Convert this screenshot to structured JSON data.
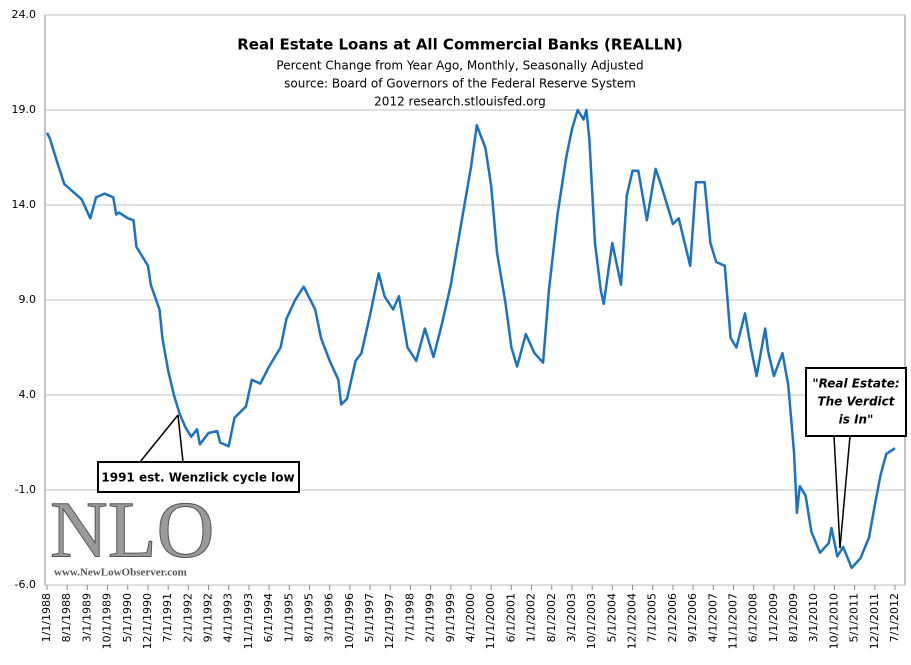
{
  "chart_data": {
    "type": "line",
    "title": "Real Estate Loans at All Commercial Banks (REALLN)",
    "subtitle": [
      "Percent Change from Year Ago, Monthly, Seasonally Adjusted",
      "source: Board of Governors of the Federal Reserve System",
      "2012 research.stlouisfed.org"
    ],
    "annotations": [
      "1991 est. Wenzlick cycle low",
      [
        "\"Real Estate:",
        "The Verdict",
        "is In\""
      ]
    ],
    "logo": [
      "NLO",
      "www.NewLowObserver.com"
    ],
    "grid": true,
    "xlim": [
      "1/1/1988",
      "7/1/2012"
    ],
    "xticks": [
      "1/1/1988",
      "8/1/1988",
      "3/1/1989",
      "10/1/1989",
      "5/1/1990",
      "12/1/1990",
      "7/1/1991",
      "2/1/1992",
      "9/1/1992",
      "4/1/1993",
      "11/1/1993",
      "6/1/1994",
      "1/1/1995",
      "8/1/1995",
      "3/1/1996",
      "10/1/1996",
      "5/1/1997",
      "12/1/1997",
      "7/1/1998",
      "2/1/1999",
      "9/1/1999",
      "4/1/2000",
      "11/1/2000",
      "6/1/2001",
      "1/1/2002",
      "8/1/2002",
      "3/1/2003",
      "10/1/2003",
      "5/1/2004",
      "12/1/2004",
      "7/1/2005",
      "2/1/2006",
      "9/1/2006",
      "4/1/2007",
      "11/1/2007",
      "6/1/2008",
      "1/1/2009",
      "8/1/2009",
      "3/1/2010",
      "10/1/2010",
      "5/1/2011",
      "12/1/2011",
      "7/1/2012"
    ],
    "ylim": [
      -6,
      24
    ],
    "yticks": [
      {
        "value": -6,
        "label": "-6.0"
      },
      {
        "value": -1,
        "label": "-1.0"
      },
      {
        "value": 4,
        "label": "4.0"
      },
      {
        "value": 9,
        "label": "9.0"
      },
      {
        "value": 14,
        "label": "14.0"
      },
      {
        "value": 19,
        "label": "19.0"
      },
      {
        "value": 24,
        "label": "24.0"
      }
    ],
    "x": [
      "1/1/1988",
      "2/1/1988",
      "4/1/1988",
      "7/1/1988",
      "10/1/1988",
      "1/1/1989",
      "4/1/1989",
      "6/1/1989",
      "9/1/1989",
      "12/1/1989",
      "1/1/1990",
      "2/1/1990",
      "5/1/1990",
      "7/1/1990",
      "8/1/1990",
      "12/1/1990",
      "1/1/1991",
      "4/1/1991",
      "5/1/1991",
      "7/1/1991",
      "9/1/1991",
      "11/1/1991",
      "1/1/1992",
      "3/1/1992",
      "5/1/1992",
      "6/1/1992",
      "9/1/1992",
      "12/1/1992",
      "1/1/1993",
      "4/1/1993",
      "6/1/1993",
      "10/1/1993",
      "12/1/1993",
      "3/1/1994",
      "6/1/1994",
      "10/1/1994",
      "12/1/1994",
      "3/1/1995",
      "6/1/1995",
      "10/1/1995",
      "12/1/1995",
      "3/1/1996",
      "6/1/1996",
      "7/1/1996",
      "9/1/1996",
      "12/1/1996",
      "2/1/1997",
      "5/1/1997",
      "8/1/1997",
      "10/1/1997",
      "1/1/1998",
      "3/1/1998",
      "6/1/1998",
      "9/1/1998",
      "12/1/1998",
      "3/1/1999",
      "6/1/1999",
      "9/1/1999",
      "12/1/1999",
      "4/1/2000",
      "6/1/2000",
      "9/1/2000",
      "11/1/2000",
      "1/1/2001",
      "4/1/2001",
      "6/1/2001",
      "8/1/2001",
      "11/1/2001",
      "2/1/2002",
      "5/1/2002",
      "7/1/2002",
      "10/1/2002",
      "1/1/2003",
      "3/1/2003",
      "5/1/2003",
      "7/1/2003",
      "8/1/2003",
      "9/1/2003",
      "11/1/2003",
      "1/1/2004",
      "2/1/2004",
      "5/1/2004",
      "8/1/2004",
      "10/1/2004",
      "12/1/2004",
      "2/1/2005",
      "5/1/2005",
      "8/1/2005",
      "10/1/2005",
      "2/1/2006",
      "4/1/2006",
      "8/1/2006",
      "10/1/2006",
      "1/1/2007",
      "3/1/2007",
      "5/1/2007",
      "8/1/2007",
      "10/1/2007",
      "12/1/2007",
      "3/1/2008",
      "5/1/2008",
      "7/1/2008",
      "10/1/2008",
      "11/1/2008",
      "1/1/2009",
      "4/1/2009",
      "6/1/2009",
      "8/1/2009",
      "9/1/2009",
      "10/1/2009",
      "12/1/2009",
      "2/1/2010",
      "5/1/2010",
      "8/1/2010",
      "9/1/2010",
      "11/1/2010",
      "1/1/2011",
      "4/1/2011",
      "7/1/2011",
      "10/1/2011",
      "12/1/2011",
      "2/1/2012",
      "4/1/2012",
      "7/1/2012"
    ],
    "series": [
      {
        "name": "REALLN",
        "color": "#1b72c0",
        "values": [
          17.8,
          17.5,
          16.5,
          15.1,
          14.7,
          14.3,
          13.3,
          14.4,
          14.6,
          14.4,
          13.5,
          13.6,
          13.3,
          13.2,
          11.8,
          10.8,
          9.8,
          8.5,
          7.0,
          5.3,
          4.0,
          3.0,
          2.3,
          1.8,
          2.2,
          1.4,
          2.0,
          2.1,
          1.5,
          1.3,
          2.8,
          3.4,
          4.8,
          4.6,
          5.5,
          6.5,
          8.0,
          9.0,
          9.7,
          8.5,
          7.0,
          5.8,
          4.8,
          3.5,
          3.8,
          5.8,
          6.2,
          8.2,
          10.4,
          9.2,
          8.5,
          9.2,
          6.5,
          5.8,
          7.5,
          6.0,
          7.8,
          9.8,
          12.5,
          16.0,
          18.2,
          17.0,
          15.0,
          11.5,
          8.8,
          6.5,
          5.5,
          7.2,
          6.2,
          5.7,
          9.5,
          13.5,
          16.5,
          18.0,
          19.0,
          18.5,
          19.0,
          17.5,
          12.0,
          9.5,
          8.8,
          12.0,
          9.8,
          14.5,
          15.8,
          15.8,
          13.2,
          15.9,
          15.0,
          13.0,
          13.3,
          10.8,
          15.2,
          15.2,
          12.0,
          11.0,
          10.8,
          7.0,
          6.5,
          8.3,
          6.5,
          5.0,
          7.5,
          6.3,
          5.0,
          6.2,
          4.5,
          1.0,
          -2.2,
          -0.8,
          -1.3,
          -3.2,
          -4.3,
          -3.8,
          -3.0,
          -4.5,
          -4.0,
          -5.1,
          -4.6,
          -3.5,
          -1.8,
          -0.2,
          0.9,
          1.2
        ]
      }
    ]
  }
}
